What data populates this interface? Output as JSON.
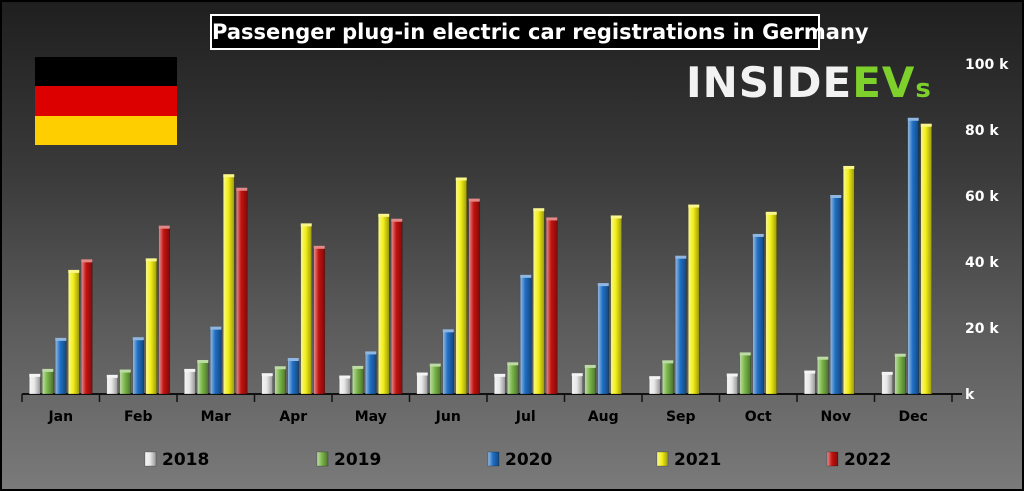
{
  "chart_data": {
    "type": "bar",
    "title": "Passenger plug-in electric car registrations in Germany",
    "categories": [
      "Jan",
      "Feb",
      "Mar",
      "Apr",
      "May",
      "Jun",
      "Jul",
      "Aug",
      "Sep",
      "Oct",
      "Nov",
      "Dec"
    ],
    "series": [
      {
        "name": "2018",
        "color": "#e8e8e8",
        "values": [
          5500,
          5200,
          7000,
          5700,
          5000,
          5900,
          5500,
          5700,
          4800,
          5600,
          6500,
          6100
        ]
      },
      {
        "name": "2019",
        "color": "#7ab648",
        "values": [
          7000,
          6800,
          9700,
          7800,
          7900,
          8600,
          9000,
          8200,
          9600,
          12000,
          10700,
          11600
        ]
      },
      {
        "name": "2020",
        "color": "#1f6fc4",
        "values": [
          16400,
          16600,
          19800,
          10300,
          12300,
          19000,
          35500,
          33000,
          41300,
          47900,
          59700,
          83100
        ]
      },
      {
        "name": "2021",
        "color": "#f2ef16",
        "values": [
          37000,
          40500,
          66000,
          51100,
          54000,
          65000,
          55700,
          53500,
          56800,
          54600,
          68500,
          81300
        ]
      },
      {
        "name": "2022",
        "color": "#c4120f",
        "values": [
          40200,
          50400,
          61900,
          44300,
          52500,
          58600,
          52900,
          null,
          null,
          null,
          null,
          null
        ]
      }
    ],
    "ylim": [
      0,
      100000
    ],
    "yticks": [
      0,
      20000,
      40000,
      60000,
      80000,
      100000
    ],
    "ytick_labels": [
      "k",
      "20 k",
      "40 k",
      "60 k",
      "80 k",
      "100 k"
    ],
    "legend": "bottom",
    "grid": false
  },
  "branding": {
    "logo_part1": "INSIDE",
    "logo_part2": "EV",
    "logo_part3": "s"
  },
  "flag": {
    "colors": [
      "#000000",
      "#dd0000",
      "#ffce00"
    ]
  }
}
